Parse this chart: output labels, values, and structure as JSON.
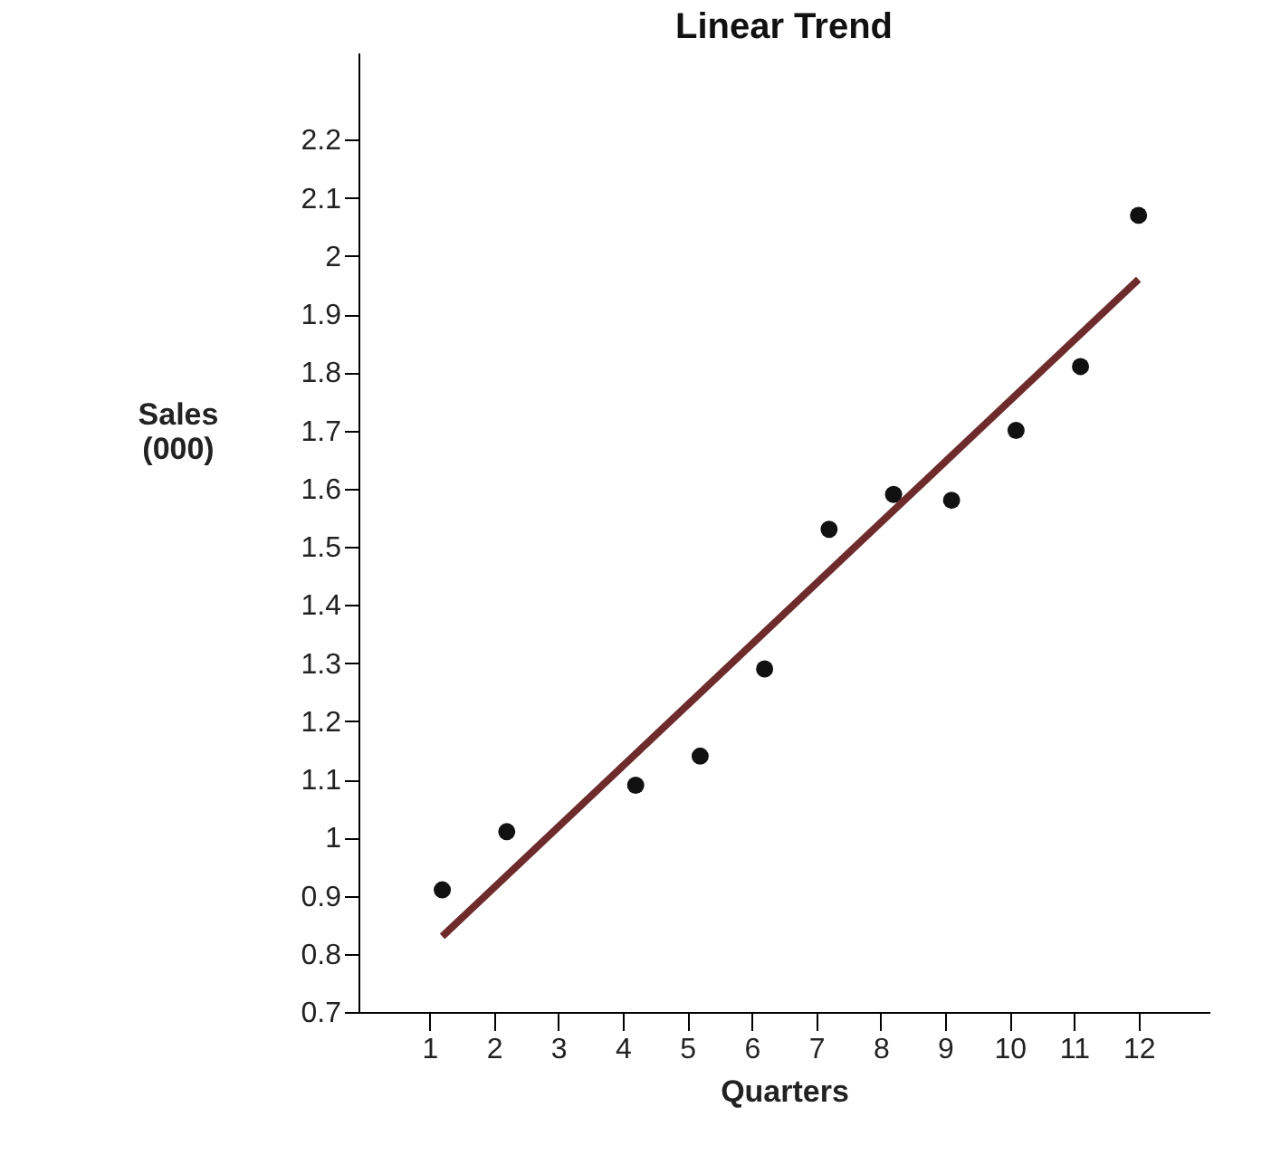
{
  "chart_data": {
    "type": "scatter",
    "title": "Linear Trend",
    "xlabel": "Quarters",
    "ylabel": "Sales (000)",
    "xlim": [
      -0.1,
      13.1
    ],
    "xticks": [
      1,
      2,
      3,
      4,
      5,
      6,
      7,
      8,
      9,
      10,
      11,
      12
    ],
    "ylim": [
      0.7,
      2.35
    ],
    "yticks": [
      0.7,
      0.8,
      0.9,
      1,
      1.1,
      1.2,
      1.3,
      1.4,
      1.5,
      1.6,
      1.7,
      1.8,
      1.9,
      2,
      2.1,
      2.2
    ],
    "grid": false,
    "series": [
      {
        "marker": "circle",
        "color": "#111111",
        "x": [
          1.2,
          2.2,
          4.2,
          5.2,
          6.2,
          7.2,
          8.2,
          9.1,
          10.1,
          11.1,
          12
        ],
        "values": [
          0.91,
          1.01,
          1.09,
          1.14,
          1.29,
          1.53,
          1.59,
          1.58,
          1.7,
          1.81,
          2.07
        ]
      },
      {
        "type": "line",
        "marker": "none",
        "color": "#6e2b2b",
        "line_style": "solid",
        "x": [
          1.2,
          12
        ],
        "values": [
          0.83,
          1.96
        ]
      }
    ]
  }
}
